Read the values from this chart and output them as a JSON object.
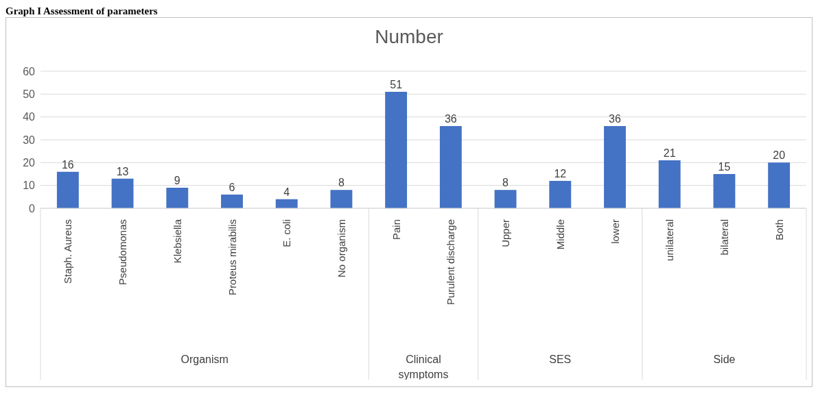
{
  "chart_data": {
    "type": "bar",
    "title": "Number",
    "annotations": [
      "Graph I Assessment of parameters",
      "Organism",
      "Clinical symptoms",
      "SES",
      "Side"
    ],
    "categories": [
      "Staph. Aureus",
      "Pseudomonas",
      "Klebsiella",
      "Proteus mirabilis",
      "E. coli",
      "No organism",
      "Pain",
      "Purulent discharge",
      "Upper",
      "Middle",
      "lower",
      "unilateral",
      "bilateral",
      "Both"
    ],
    "values": [
      16,
      13,
      9,
      6,
      4,
      8,
      51,
      36,
      8,
      12,
      36,
      21,
      15,
      20
    ],
    "color": "#4472c4",
    "ylim": [
      0,
      60
    ],
    "yticks": [
      0,
      10,
      20,
      30,
      40,
      50,
      60
    ],
    "grid": "y",
    "data_labels": true,
    "legend": false
  }
}
